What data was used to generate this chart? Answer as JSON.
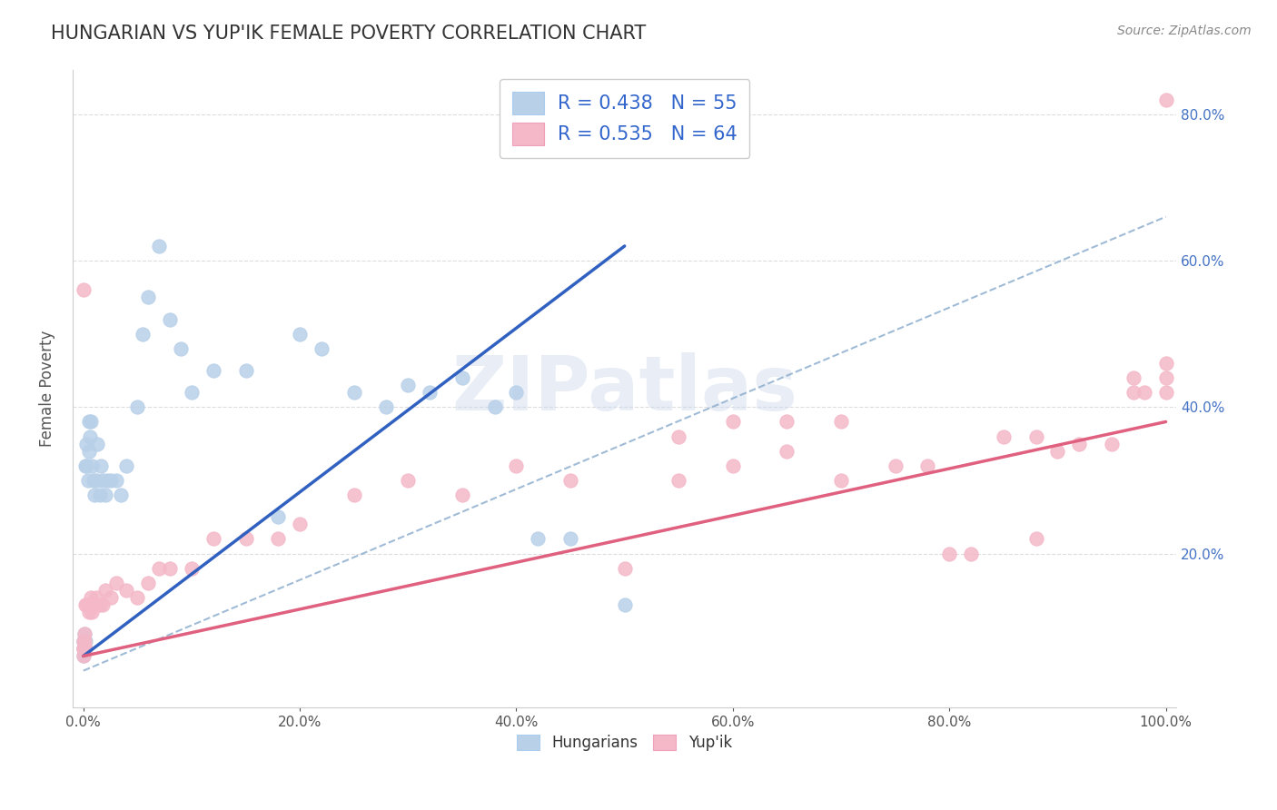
{
  "title": "HUNGARIAN VS YUP'IK FEMALE POVERTY CORRELATION CHART",
  "source_text": "Source: ZipAtlas.com",
  "ylabel": "Female Poverty",
  "watermark": "ZIPatlas",
  "legend_entries": [
    {
      "label": "R = 0.438   N = 55",
      "color": "#b8d0e8"
    },
    {
      "label": "R = 0.535   N = 64",
      "color": "#f4b8c8"
    }
  ],
  "legend_bottom": [
    {
      "label": "Hungarians",
      "color": "#b8d0e8"
    },
    {
      "label": "Yup'ik",
      "color": "#f4b8c8"
    }
  ],
  "blue_scatter_color": "#b8d0e8",
  "pink_scatter_color": "#f4b8c8",
  "blue_line_color": "#3060c0",
  "pink_line_color": "#e06080",
  "ref_line_color": "#88aacc",
  "title_color": "#333333",
  "legend_text_color": "#3366cc",
  "axis_tick_color": "#4472c4",
  "grid_color": "#dddddd",
  "background_color": "#ffffff",
  "xlim": [
    0.0,
    1.0
  ],
  "ylim": [
    0.0,
    0.86
  ],
  "x_ticks": [
    0.0,
    0.2,
    0.4,
    0.6,
    0.8,
    1.0
  ],
  "x_labels": [
    "0.0%",
    "20.0%",
    "40.0%",
    "60.0%",
    "80.0%",
    "100.0%"
  ],
  "y_ticks": [
    0.2,
    0.4,
    0.6,
    0.8
  ],
  "y_labels": [
    "20.0%",
    "40.0%",
    "60.0%",
    "80.0%"
  ],
  "hun_line_x0": 0.0,
  "hun_line_x1": 0.5,
  "hun_line_y0": 0.06,
  "hun_line_y1": 0.62,
  "yup_line_x0": 0.0,
  "yup_line_x1": 1.0,
  "yup_line_y0": 0.06,
  "yup_line_y1": 0.38,
  "ref_line_x0": 0.0,
  "ref_line_x1": 1.0,
  "ref_line_y0": 0.04,
  "ref_line_y1": 0.66,
  "marker_size": 120,
  "hun_scatter_x": [
    0.0,
    0.0,
    0.0,
    0.0,
    0.0,
    0.001,
    0.001,
    0.001,
    0.001,
    0.001,
    0.002,
    0.002,
    0.003,
    0.003,
    0.004,
    0.005,
    0.005,
    0.006,
    0.007,
    0.008,
    0.009,
    0.01,
    0.012,
    0.013,
    0.015,
    0.016,
    0.018,
    0.02,
    0.022,
    0.025,
    0.03,
    0.035,
    0.04,
    0.05,
    0.055,
    0.06,
    0.07,
    0.08,
    0.09,
    0.1,
    0.12,
    0.15,
    0.18,
    0.2,
    0.22,
    0.25,
    0.28,
    0.3,
    0.32,
    0.35,
    0.38,
    0.4,
    0.42,
    0.45,
    0.5
  ],
  "hun_scatter_y": [
    0.06,
    0.07,
    0.07,
    0.08,
    0.08,
    0.07,
    0.07,
    0.08,
    0.08,
    0.09,
    0.08,
    0.32,
    0.32,
    0.35,
    0.3,
    0.34,
    0.38,
    0.36,
    0.38,
    0.32,
    0.3,
    0.28,
    0.3,
    0.35,
    0.28,
    0.32,
    0.3,
    0.28,
    0.3,
    0.3,
    0.3,
    0.28,
    0.32,
    0.4,
    0.5,
    0.55,
    0.62,
    0.52,
    0.48,
    0.42,
    0.45,
    0.45,
    0.25,
    0.5,
    0.48,
    0.42,
    0.4,
    0.43,
    0.42,
    0.44,
    0.4,
    0.42,
    0.22,
    0.22,
    0.13
  ],
  "yup_scatter_x": [
    0.0,
    0.0,
    0.0,
    0.0,
    0.0,
    0.001,
    0.001,
    0.001,
    0.002,
    0.002,
    0.003,
    0.004,
    0.005,
    0.006,
    0.007,
    0.008,
    0.01,
    0.012,
    0.015,
    0.018,
    0.02,
    0.025,
    0.03,
    0.04,
    0.05,
    0.06,
    0.07,
    0.08,
    0.1,
    0.12,
    0.15,
    0.18,
    0.2,
    0.25,
    0.3,
    0.35,
    0.4,
    0.45,
    0.5,
    0.55,
    0.6,
    0.65,
    0.7,
    0.75,
    0.8,
    0.85,
    0.88,
    0.9,
    0.92,
    0.95,
    0.97,
    0.97,
    0.98,
    1.0,
    1.0,
    1.0,
    1.0,
    0.55,
    0.6,
    0.65,
    0.7,
    0.78,
    0.82,
    0.88
  ],
  "yup_scatter_y": [
    0.06,
    0.07,
    0.07,
    0.08,
    0.56,
    0.07,
    0.08,
    0.09,
    0.07,
    0.13,
    0.13,
    0.13,
    0.12,
    0.13,
    0.14,
    0.12,
    0.13,
    0.14,
    0.13,
    0.13,
    0.15,
    0.14,
    0.16,
    0.15,
    0.14,
    0.16,
    0.18,
    0.18,
    0.18,
    0.22,
    0.22,
    0.22,
    0.24,
    0.28,
    0.3,
    0.28,
    0.32,
    0.3,
    0.18,
    0.3,
    0.32,
    0.34,
    0.3,
    0.32,
    0.2,
    0.36,
    0.36,
    0.34,
    0.35,
    0.35,
    0.42,
    0.44,
    0.42,
    0.42,
    0.44,
    0.46,
    0.82,
    0.36,
    0.38,
    0.38,
    0.38,
    0.32,
    0.2,
    0.22
  ]
}
